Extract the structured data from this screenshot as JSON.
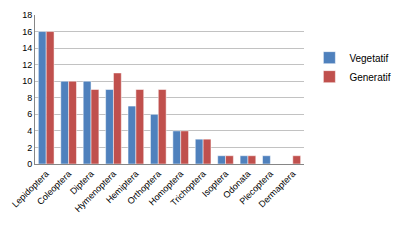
{
  "chart_data": {
    "type": "bar",
    "categories": [
      "Lepidoptera",
      "Coleoptera",
      "Diptera",
      "Hymenoptera",
      "Hemiptera",
      "Orthoptera",
      "Homoptera",
      "Trichoptera",
      "Isoptera",
      "Odonata",
      "Plecoptera",
      "Dermaptera"
    ],
    "series": [
      {
        "name": "Vegetatif",
        "color": "#4f81bd",
        "values": [
          16,
          10,
          10,
          9,
          7,
          6,
          4,
          3,
          1,
          1,
          1,
          0
        ]
      },
      {
        "name": "Generatif",
        "color": "#c0504d",
        "values": [
          16,
          10,
          9,
          11,
          9,
          9,
          4,
          3,
          1,
          1,
          0,
          1
        ]
      }
    ],
    "ylim": [
      0,
      18
    ],
    "yticks": [
      0,
      2,
      4,
      6,
      8,
      10,
      12,
      14,
      16,
      18
    ],
    "grid": true,
    "legend": "right"
  }
}
